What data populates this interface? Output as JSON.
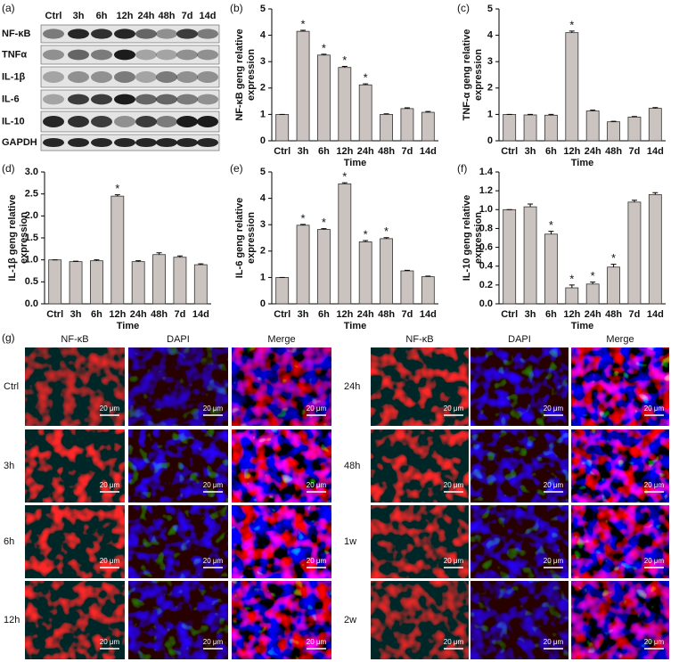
{
  "panel_labels": [
    "(a)",
    "(b)",
    "(c)",
    "(d)",
    "(e)",
    "(f)",
    "(g)"
  ],
  "blot": {
    "lanes": [
      "Ctrl",
      "3h",
      "6h",
      "12h",
      "24h",
      "48h",
      "7d",
      "14d"
    ],
    "proteins": [
      "NF-κB",
      "TNFα",
      "IL-1β",
      "IL-6",
      "IL-10",
      "GAPDH"
    ]
  },
  "chart_data": [
    {
      "type": "bar",
      "y_label": [
        "NF-κB geng relative",
        "expression"
      ],
      "x_label": "Time",
      "categories": [
        "Ctrl",
        "3h",
        "6h",
        "12h",
        "24h",
        "48h",
        "7d",
        "14d"
      ],
      "values": [
        1,
        4.15,
        3.25,
        2.78,
        2.12,
        1,
        1.22,
        1.08
      ],
      "errors": [
        0,
        0.04,
        0.03,
        0.04,
        0.04,
        0.02,
        0.03,
        0.03
      ],
      "significance": [
        null,
        "*",
        "*",
        "*",
        "*",
        null,
        null,
        null
      ],
      "ylim": [
        0,
        5
      ],
      "yticks": [
        0,
        1,
        2,
        3,
        4,
        5
      ],
      "color": "#cbc3bf"
    },
    {
      "type": "bar",
      "y_label": [
        "TNF-α geng relative",
        "expression"
      ],
      "x_label": "Time",
      "categories": [
        "Ctrl",
        "3h",
        "6h",
        "12h",
        "24h",
        "48h",
        "7d",
        "14d"
      ],
      "values": [
        1,
        0.98,
        0.97,
        4.1,
        1.13,
        0.72,
        0.9,
        1.23
      ],
      "errors": [
        0,
        0.02,
        0.03,
        0.06,
        0.03,
        0.02,
        0.02,
        0.03
      ],
      "significance": [
        null,
        null,
        null,
        "*",
        null,
        null,
        null,
        null
      ],
      "ylim": [
        0,
        5
      ],
      "yticks": [
        0,
        1,
        2,
        3,
        4,
        5
      ],
      "color": "#cbc3bf"
    },
    {
      "type": "bar",
      "y_label": [
        "IL-1β geng relative",
        "expression"
      ],
      "x_label": "Time",
      "categories": [
        "Ctrl",
        "3h",
        "6h",
        "12h",
        "24h",
        "48h",
        "7d",
        "14d"
      ],
      "values": [
        1,
        0.96,
        0.98,
        2.45,
        0.96,
        1.12,
        1.06,
        0.89
      ],
      "errors": [
        0,
        0.01,
        0.02,
        0.03,
        0.02,
        0.04,
        0.03,
        0.02
      ],
      "significance": [
        null,
        null,
        null,
        "*",
        null,
        null,
        null,
        null
      ],
      "ylim": [
        0,
        3
      ],
      "yticks": [
        {
          "value": 0,
          "label": "0.0"
        },
        0.5,
        {
          "value": 1,
          "label": "1.0"
        },
        1.5,
        {
          "value": 2,
          "label": "2.0"
        },
        2.5,
        {
          "value": 3,
          "label": "3.0"
        }
      ],
      "color": "#cbc3bf"
    },
    {
      "type": "bar",
      "y_label": [
        "IL-6 geng relative",
        "expression"
      ],
      "x_label": "Time",
      "categories": [
        "Ctrl",
        "3h",
        "6h",
        "12h",
        "24h",
        "48h",
        "7d",
        "14d"
      ],
      "values": [
        1,
        2.98,
        2.82,
        4.55,
        2.35,
        2.47,
        1.25,
        1.03
      ],
      "errors": [
        0,
        0.03,
        0.03,
        0.04,
        0.05,
        0.04,
        0.02,
        0.02
      ],
      "significance": [
        null,
        "*",
        "*",
        "*",
        "*",
        "*",
        null,
        null
      ],
      "ylim": [
        0,
        5
      ],
      "yticks": [
        0,
        1,
        2,
        3,
        4,
        5
      ],
      "color": "#cbc3bf"
    },
    {
      "type": "bar",
      "y_label": [
        "IL-10 geng relative",
        "expression"
      ],
      "x_label": "Time",
      "categories": [
        "Ctrl",
        "3h",
        "6h",
        "12h",
        "24h",
        "48h",
        "7d",
        "14d"
      ],
      "values": [
        1,
        1.03,
        0.74,
        0.17,
        0.21,
        0.39,
        1.08,
        1.16
      ],
      "errors": [
        0,
        0.03,
        0.03,
        0.03,
        0.02,
        0.03,
        0.02,
        0.02
      ],
      "significance": [
        null,
        null,
        "*",
        "*",
        "*",
        "*",
        null,
        null
      ],
      "ylim": [
        0,
        1.4
      ],
      "yticks": [
        {
          "value": 0,
          "label": "0.0"
        },
        0.2,
        0.4,
        0.6,
        0.8,
        {
          "value": 1,
          "label": "1.0"
        },
        1.2,
        1.4
      ],
      "color": "#cbc3bf"
    }
  ],
  "if_panel": {
    "columns": [
      "NF-κB",
      "DAPI",
      "Merge"
    ],
    "left_rows": [
      "Ctrl",
      "3h",
      "6h",
      "12h"
    ],
    "right_rows": [
      "24h",
      "48h",
      "1w",
      "2w"
    ],
    "scale_bar": "20 μm"
  }
}
